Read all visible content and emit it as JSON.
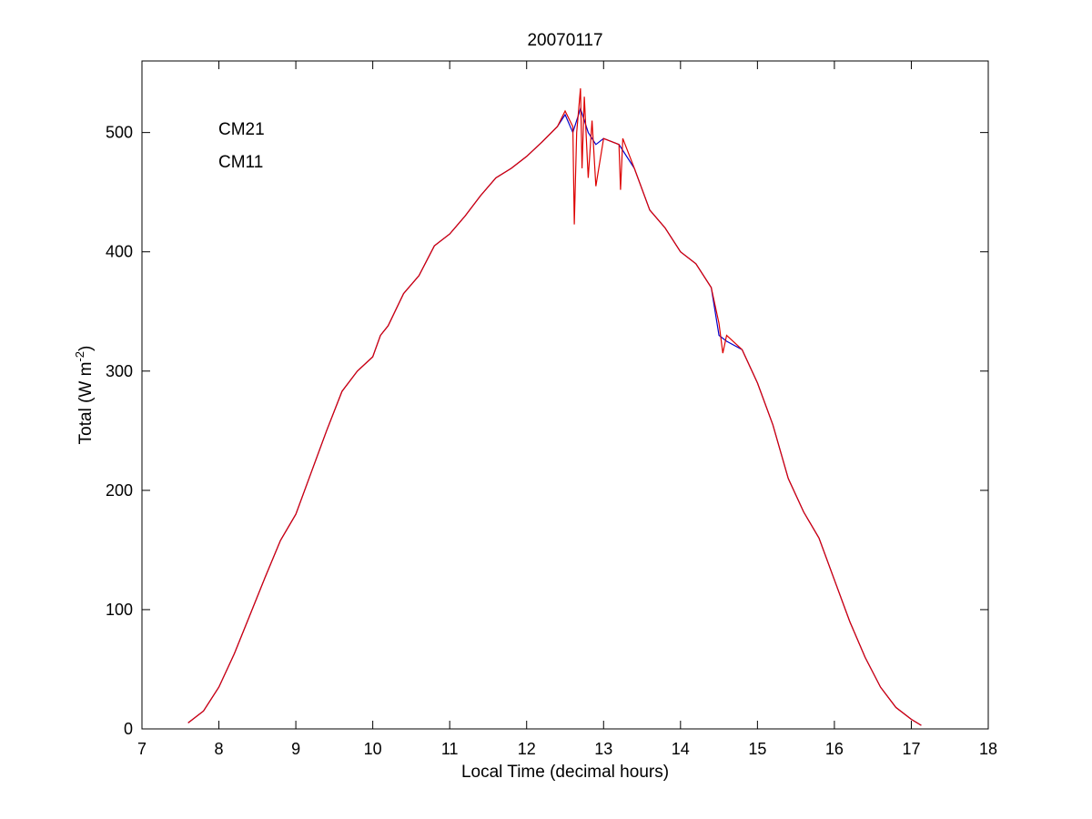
{
  "chart_data": {
    "type": "line",
    "title": "20070117",
    "xlabel": "Local Time (decimal hours)",
    "ylabel": "Total (W m",
    "ylabel_sup": "-2",
    "ylabel_close": ")",
    "xlim": [
      7,
      18
    ],
    "ylim": [
      0,
      560
    ],
    "xticks": [
      7,
      8,
      9,
      10,
      11,
      12,
      13,
      14,
      15,
      16,
      17,
      18
    ],
    "yticks": [
      0,
      100,
      200,
      300,
      400,
      500
    ],
    "grid": false,
    "legend_position": "top-left",
    "series": [
      {
        "name": "CM21",
        "color": "#0000cc",
        "x": [
          7.6,
          7.8,
          8.0,
          8.2,
          8.4,
          8.6,
          8.8,
          9.0,
          9.2,
          9.4,
          9.6,
          9.8,
          10.0,
          10.1,
          10.2,
          10.4,
          10.6,
          10.8,
          11.0,
          11.2,
          11.4,
          11.6,
          11.8,
          12.0,
          12.2,
          12.4,
          12.5,
          12.6,
          12.7,
          12.8,
          12.9,
          13.0,
          13.2,
          13.4,
          13.6,
          13.8,
          14.0,
          14.2,
          14.4,
          14.5,
          14.6,
          14.8,
          15.0,
          15.2,
          15.4,
          15.6,
          15.8,
          16.0,
          16.2,
          16.4,
          16.6,
          16.8,
          17.0,
          17.13
        ],
        "values": [
          5,
          15,
          35,
          63,
          95,
          127,
          158,
          180,
          215,
          250,
          283,
          300,
          312,
          330,
          338,
          365,
          380,
          405,
          415,
          430,
          447,
          462,
          470,
          480,
          492,
          505,
          515,
          500,
          520,
          500,
          490,
          495,
          490,
          470,
          435,
          420,
          400,
          390,
          370,
          330,
          325,
          318,
          290,
          255,
          210,
          182,
          160,
          125,
          90,
          60,
          35,
          18,
          8,
          3
        ]
      },
      {
        "name": "CM11",
        "color": "#dd0000",
        "x": [
          7.6,
          7.8,
          8.0,
          8.2,
          8.4,
          8.6,
          8.8,
          9.0,
          9.2,
          9.4,
          9.6,
          9.8,
          10.0,
          10.1,
          10.2,
          10.4,
          10.6,
          10.8,
          11.0,
          11.2,
          11.4,
          11.6,
          11.8,
          12.0,
          12.2,
          12.4,
          12.5,
          12.6,
          12.62,
          12.65,
          12.7,
          12.72,
          12.75,
          12.8,
          12.85,
          12.9,
          13.0,
          13.2,
          13.22,
          13.25,
          13.4,
          13.6,
          13.8,
          14.0,
          14.2,
          14.4,
          14.5,
          14.55,
          14.6,
          14.8,
          15.0,
          15.2,
          15.4,
          15.6,
          15.8,
          16.0,
          16.2,
          16.4,
          16.6,
          16.8,
          17.0,
          17.13
        ],
        "values": [
          5,
          15,
          35,
          63,
          95,
          127,
          158,
          180,
          215,
          250,
          283,
          300,
          312,
          330,
          338,
          365,
          380,
          405,
          415,
          430,
          447,
          462,
          470,
          480,
          492,
          505,
          518,
          505,
          423,
          500,
          537,
          470,
          530,
          462,
          510,
          455,
          495,
          490,
          452,
          495,
          470,
          435,
          420,
          400,
          390,
          370,
          340,
          315,
          330,
          318,
          290,
          255,
          210,
          182,
          160,
          125,
          90,
          60,
          35,
          18,
          8,
          3
        ]
      }
    ]
  }
}
